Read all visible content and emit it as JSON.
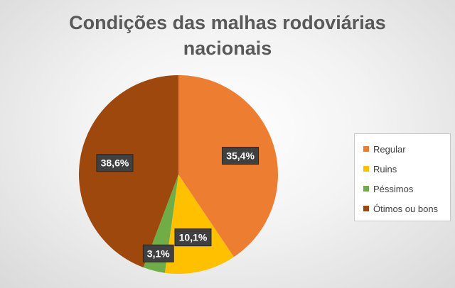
{
  "chart_data": {
    "type": "pie",
    "title": "Condições das malhas rodoviárias nacionais",
    "title_lines": [
      "Condições das malhas rodoviárias",
      "nacionais"
    ],
    "categories": [
      "Regular",
      "Ruins",
      "Péssimos",
      "Ótimos ou bons"
    ],
    "values": [
      35.4,
      10.1,
      3.1,
      38.6
    ],
    "value_labels": [
      "35,4%",
      "10,1%",
      "3,1%",
      "38,6%"
    ],
    "colors": [
      "#ED7D31",
      "#FFC000",
      "#70AD47",
      "#9E480E"
    ],
    "legend": "right",
    "start_angle_deg": 0,
    "direction": "clockwise"
  }
}
